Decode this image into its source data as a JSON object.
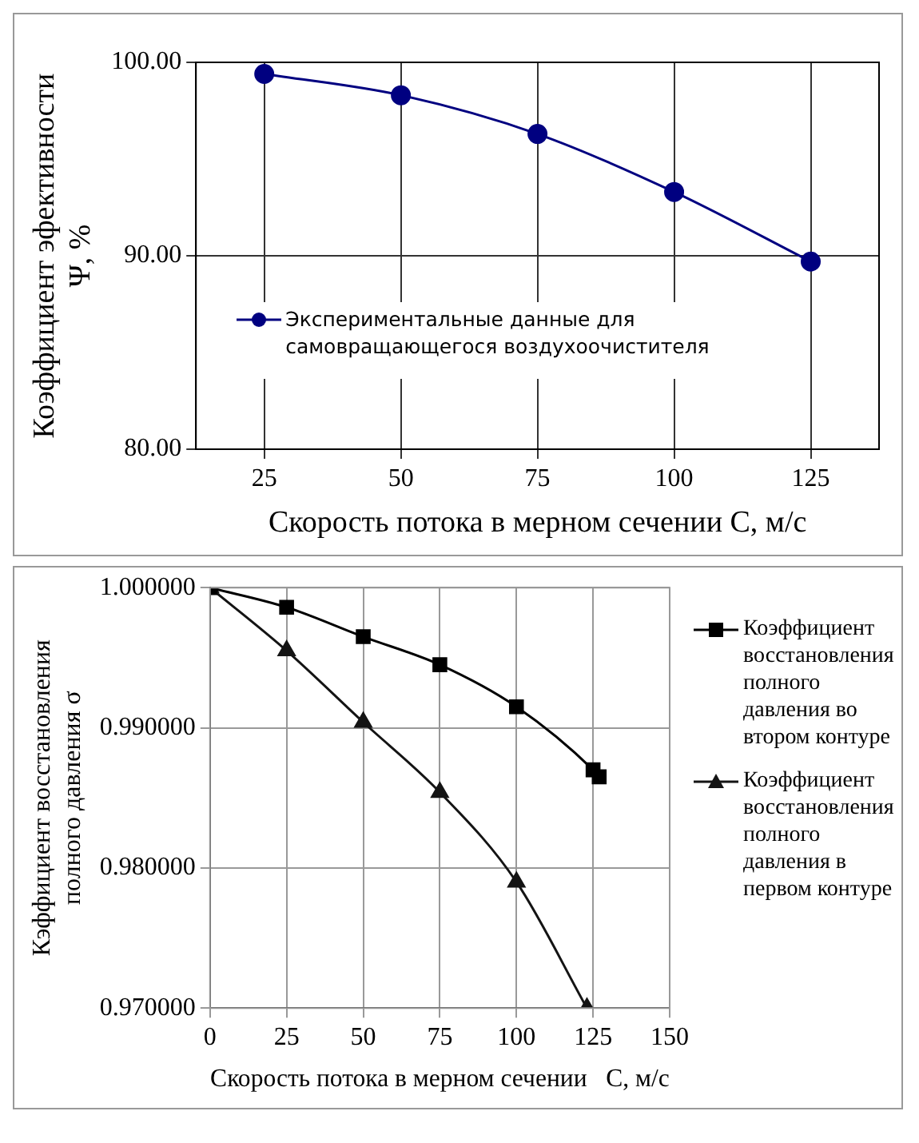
{
  "chart_data": [
    {
      "type": "line",
      "xlabel": "Скорость потока в мерном сечении С, м/с",
      "ylabel": "Коэффициент эфективности\nΨ, %",
      "categories": [
        "25",
        "50",
        "75",
        "100",
        "125"
      ],
      "series": [
        {
          "name": "Экспериментальные данные для самовращающегося воздухоочистителя",
          "color": "#000080",
          "values": [
            99.4,
            98.3,
            96.3,
            93.3,
            89.7
          ]
        }
      ],
      "ylim": [
        80,
        100
      ],
      "yticks": [
        {
          "value": 80,
          "label": "80.00"
        },
        {
          "value": 90,
          "label": "90.00"
        },
        {
          "value": 100,
          "label": "100.00"
        }
      ],
      "grid": true,
      "legend": "bottom left",
      "marker": "circle"
    },
    {
      "type": "line",
      "xlabel": "Скорость потока в мерном сечении   С, м/с",
      "ylabel": "Кэффициент восстановления\nполного давления σ",
      "series": [
        {
          "name": "Коэффициент восстановления полного давления во втором контуре",
          "color": "#000000",
          "marker": "square",
          "x": [
            0,
            25,
            50,
            75,
            100,
            125,
            127
          ],
          "values": [
            1.0,
            0.9986,
            0.9965,
            0.9945,
            0.9915,
            0.987,
            0.9865
          ]
        },
        {
          "name": "Коэффициент восстановления полного давления в первом контуре",
          "color": "#141414",
          "marker": "triangle",
          "x": [
            0,
            25,
            50,
            75,
            100,
            123
          ],
          "values": [
            1.0,
            0.9955,
            0.9904,
            0.9854,
            0.979,
            0.97
          ]
        }
      ],
      "xlim": [
        0,
        150
      ],
      "xticks": [
        0,
        25,
        50,
        75,
        100,
        125,
        150
      ],
      "ylim": [
        0.97,
        1.0
      ],
      "yticks": [
        {
          "value": 0.97,
          "label": "0.970000"
        },
        {
          "value": 0.98,
          "label": "0.980000"
        },
        {
          "value": 0.99,
          "label": "0.990000"
        },
        {
          "value": 1.0,
          "label": "1.000000"
        }
      ],
      "grid": true,
      "legend": "right"
    }
  ]
}
